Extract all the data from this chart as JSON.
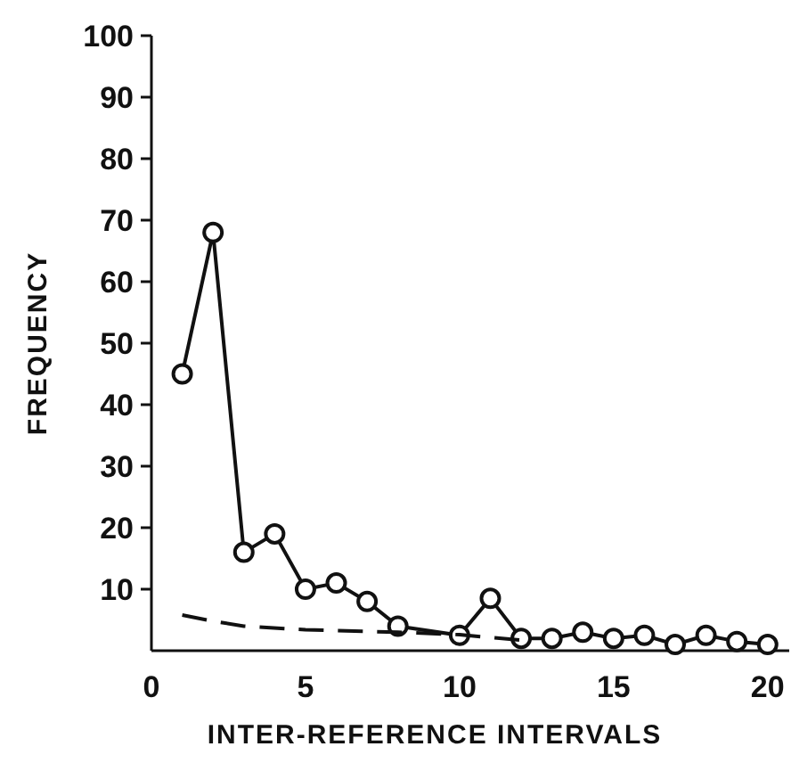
{
  "chart_data": {
    "type": "line",
    "xlabel": "INTER-REFERENCE INTERVALS",
    "ylabel": "FREQUENCY",
    "xlim": [
      0,
      20.7
    ],
    "ylim": [
      0,
      100
    ],
    "xticks": [
      0,
      5,
      10,
      15,
      20
    ],
    "yticks": [
      10,
      20,
      30,
      40,
      50,
      60,
      70,
      80,
      90,
      100
    ],
    "series": [
      {
        "color": "#111111",
        "marker": "circle",
        "line_style": "solid",
        "x": [
          1,
          2,
          3,
          4,
          5,
          6,
          7,
          8,
          10,
          11,
          12,
          13,
          14,
          15,
          16,
          17,
          18,
          19,
          20
        ],
        "values": [
          45,
          68,
          16,
          19,
          10,
          11,
          8,
          4,
          2.5,
          8.5,
          2,
          2,
          3,
          2,
          2.5,
          1,
          2.5,
          1.5,
          1
        ]
      },
      {
        "color": "#111111",
        "marker": "none",
        "line_style": "dashed",
        "x": [
          1,
          2,
          3,
          5,
          8,
          10,
          12
        ],
        "values": [
          5.8,
          4.8,
          4,
          3.4,
          3,
          2.6,
          1.7
        ]
      }
    ]
  }
}
